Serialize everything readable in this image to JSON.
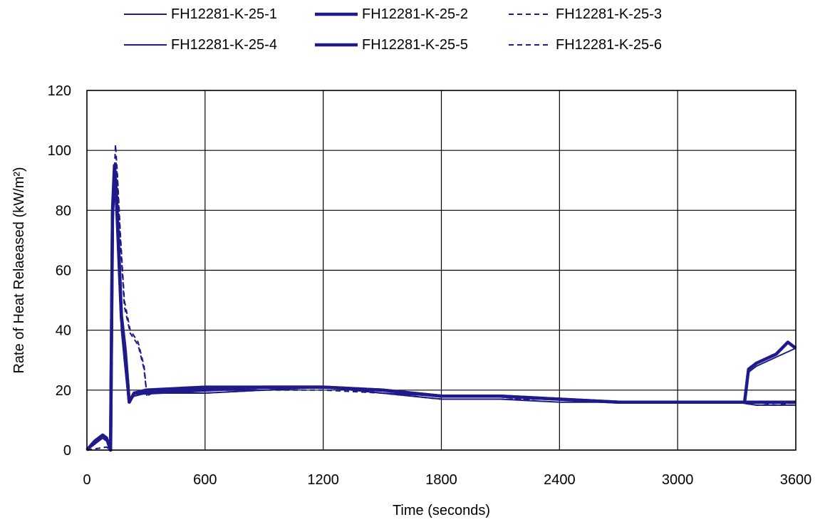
{
  "chart_data": {
    "type": "line",
    "title": "",
    "xlabel": "Time (seconds)",
    "ylabel": "Rate of Heat Relaeased (kW/m²)",
    "xlim": [
      0,
      3600
    ],
    "ylim": [
      0,
      120
    ],
    "xticks": [
      "0",
      "600",
      "1200",
      "1800",
      "2400",
      "3000",
      "3600"
    ],
    "yticks": [
      "0",
      "20",
      "40",
      "60",
      "80",
      "100",
      "120"
    ],
    "grid": true,
    "legend_position": "top",
    "line_color": "#1f1a8a",
    "series": [
      {
        "name": "FH12281-K-25-1",
        "style": "solid-thin",
        "x": [
          0,
          40,
          80,
          100,
          120,
          130,
          140,
          150,
          160,
          175,
          190,
          210,
          240,
          300,
          600,
          900,
          1200,
          1500,
          1800,
          2100,
          2400,
          2700,
          3000,
          3300,
          3340,
          3360,
          3400,
          3500,
          3600
        ],
        "y": [
          0,
          2,
          5,
          3,
          0,
          75,
          90,
          80,
          65,
          40,
          30,
          17,
          18,
          19,
          20,
          20,
          21,
          19,
          18,
          18,
          17,
          16,
          16,
          16,
          16,
          26,
          28,
          31,
          34
        ]
      },
      {
        "name": "FH12281-K-25-2",
        "style": "solid-thick",
        "x": [
          0,
          40,
          80,
          100,
          120,
          130,
          140,
          150,
          160,
          175,
          195,
          215,
          240,
          300,
          600,
          900,
          1200,
          1500,
          1800,
          2100,
          2400,
          2700,
          3000,
          3300,
          3340,
          3360,
          3400,
          3500,
          3560,
          3600
        ],
        "y": [
          0,
          3,
          5,
          4,
          0,
          80,
          95,
          85,
          70,
          45,
          33,
          16,
          19,
          19,
          20,
          21,
          21,
          20,
          18,
          18,
          17,
          16,
          16,
          16,
          16,
          27,
          29,
          32,
          36,
          34
        ]
      },
      {
        "name": "FH12281-K-25-3",
        "style": "dashed",
        "x": [
          0,
          100,
          120,
          135,
          145,
          155,
          170,
          190,
          220,
          260,
          290,
          305,
          330,
          600,
          900,
          1200,
          1500,
          1800,
          2100,
          2400,
          2700,
          3000,
          3300,
          3400,
          3500,
          3600
        ],
        "y": [
          0,
          1,
          0,
          85,
          102,
          92,
          72,
          50,
          40,
          36,
          28,
          18,
          19,
          20,
          20,
          21,
          19,
          17,
          17,
          17,
          16,
          16,
          16,
          16,
          15,
          16
        ]
      },
      {
        "name": "FH12281-K-25-4",
        "style": "solid-thin",
        "x": [
          0,
          40,
          80,
          100,
          120,
          130,
          140,
          150,
          160,
          175,
          190,
          210,
          240,
          300,
          600,
          900,
          1200,
          1500,
          1800,
          2100,
          2400,
          2700,
          3000,
          3300,
          3400,
          3500,
          3600
        ],
        "y": [
          0,
          2,
          4,
          3,
          0,
          70,
          88,
          78,
          62,
          42,
          30,
          17,
          18,
          19,
          19,
          20,
          21,
          19,
          17,
          17,
          16,
          16,
          16,
          16,
          15,
          15,
          15
        ]
      },
      {
        "name": "FH12281-K-25-5",
        "style": "solid-thick",
        "x": [
          0,
          40,
          80,
          100,
          120,
          130,
          140,
          150,
          160,
          175,
          195,
          215,
          240,
          300,
          600,
          900,
          1200,
          1500,
          1800,
          2100,
          2400,
          2700,
          3000,
          3300,
          3400,
          3500,
          3600
        ],
        "y": [
          0,
          3,
          5,
          4,
          0,
          78,
          93,
          83,
          68,
          44,
          32,
          16,
          19,
          20,
          21,
          21,
          21,
          20,
          18,
          18,
          17,
          16,
          16,
          16,
          16,
          16,
          16
        ]
      },
      {
        "name": "FH12281-K-25-6",
        "style": "dashed",
        "x": [
          0,
          100,
          120,
          135,
          145,
          155,
          170,
          190,
          220,
          260,
          290,
          305,
          330,
          600,
          900,
          1200,
          1500,
          1800,
          2100,
          2400,
          2700,
          3000,
          3300,
          3400,
          3500,
          3600
        ],
        "y": [
          0,
          1,
          0,
          82,
          98,
          90,
          70,
          48,
          39,
          35,
          27,
          18,
          19,
          19,
          20,
          20,
          19,
          17,
          17,
          17,
          16,
          16,
          16,
          15,
          15,
          15
        ]
      }
    ]
  }
}
